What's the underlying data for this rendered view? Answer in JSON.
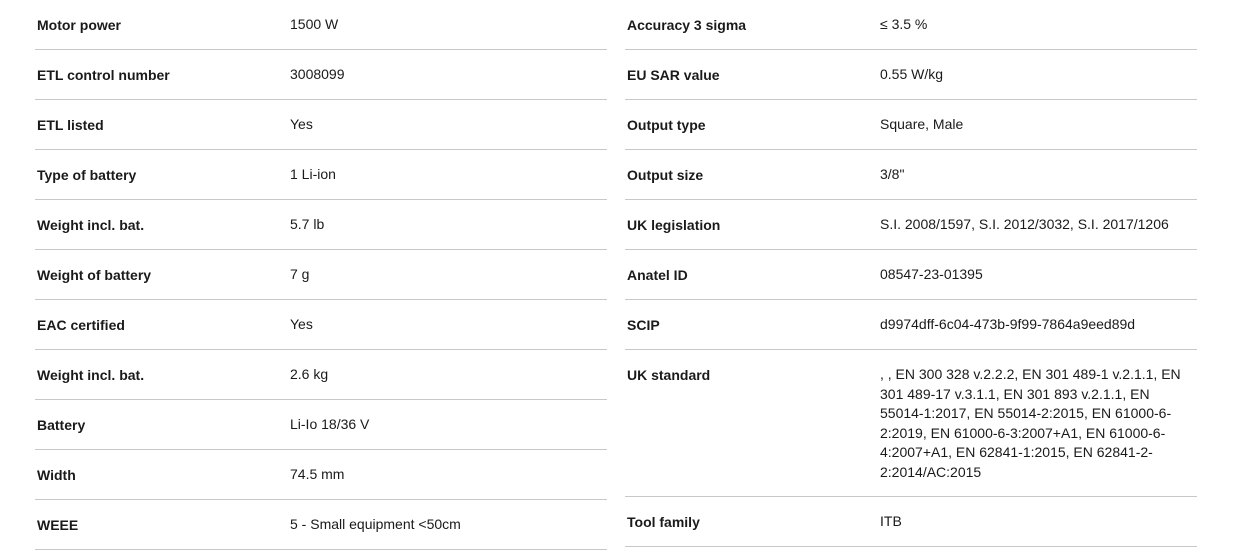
{
  "page": {
    "background": "#ffffff",
    "text_color": "#1a1a1a",
    "divider_color": "#c8c8c8"
  },
  "spec_tables": {
    "left": {
      "rows": [
        {
          "label": "Motor power",
          "value": "1500 W"
        },
        {
          "label": "ETL control number",
          "value": "3008099"
        },
        {
          "label": "ETL listed",
          "value": "Yes"
        },
        {
          "label": "Type of battery",
          "value": "1 Li-ion"
        },
        {
          "label": "Weight incl. bat.",
          "value": "5.7 lb"
        },
        {
          "label": "Weight of battery",
          "value": "7 g"
        },
        {
          "label": "EAC certified",
          "value": "Yes"
        },
        {
          "label": "Weight incl. bat.",
          "value": "2.6 kg"
        },
        {
          "label": "Battery",
          "value": "Li-Io 18/36 V"
        },
        {
          "label": "Width",
          "value": "74.5 mm"
        },
        {
          "label": "WEEE",
          "value": "5 - Small equipment <50cm"
        }
      ]
    },
    "right": {
      "rows": [
        {
          "label": "Accuracy 3 sigma",
          "value": "≤ 3.5 %"
        },
        {
          "label": "EU SAR value",
          "value": "0.55 W/kg"
        },
        {
          "label": "Output type",
          "value": "Square, Male"
        },
        {
          "label": "Output size",
          "value": "3/8\""
        },
        {
          "label": "UK legislation",
          "value": "S.I. 2008/1597, S.I. 2012/3032, S.I. 2017/1206"
        },
        {
          "label": "Anatel ID",
          "value": "08547-23-01395"
        },
        {
          "label": "SCIP",
          "value": "d9974dff-6c04-473b-9f99-7864a9eed89d"
        },
        {
          "label": "UK standard",
          "value": ", , EN 300 328 v.2.2.2, EN 301 489-1 v.2.1.1, EN 301 489-17 v.3.1.1, EN 301 893 v.2.1.1, EN 55014-1:2017, EN 55014-2:2015, EN 61000-6-2:2019, EN 61000-6-3:2007+A1, EN 61000-6-4:2007+A1, EN 62841-1:2015, EN 62841-2-2:2014/AC:2015"
        },
        {
          "label": "Tool family",
          "value": "ITB"
        }
      ]
    }
  }
}
